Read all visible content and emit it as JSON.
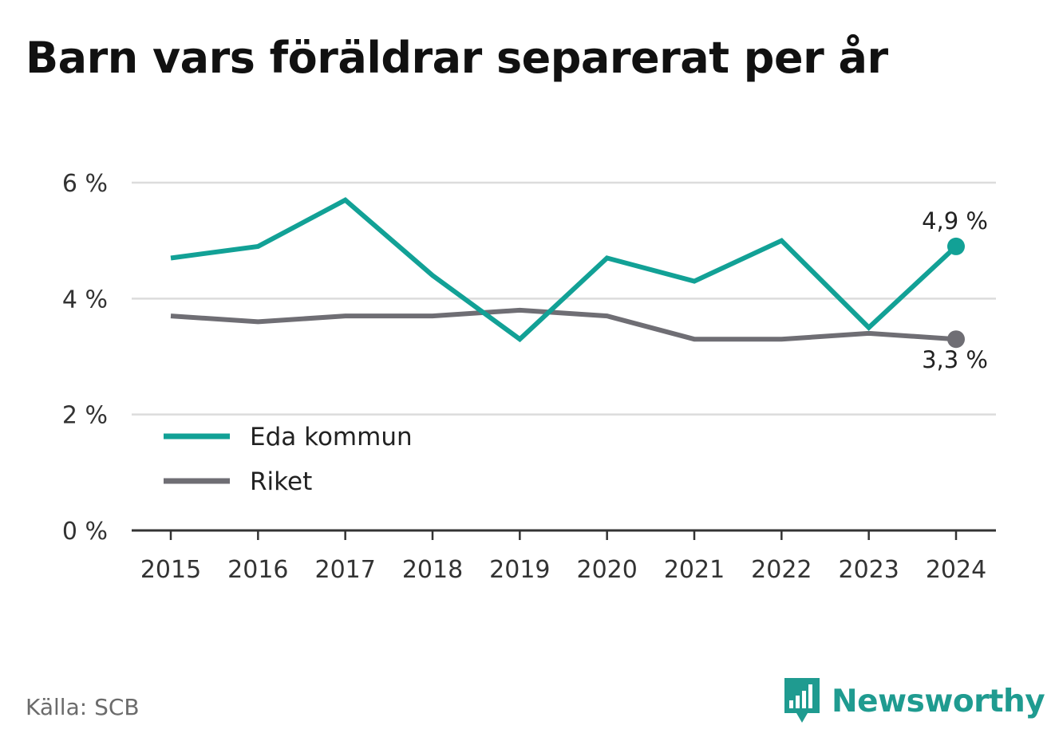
{
  "chart_data": {
    "type": "line",
    "title": "Barn vars föräldrar separerat per år",
    "x": [
      "2015",
      "2016",
      "2017",
      "2018",
      "2019",
      "2020",
      "2021",
      "2022",
      "2023",
      "2024"
    ],
    "series": [
      {
        "name": "Eda kommun",
        "color": "#12a196",
        "values": [
          4.7,
          4.9,
          5.7,
          4.4,
          3.3,
          4.7,
          4.3,
          5.0,
          3.5,
          4.9
        ]
      },
      {
        "name": "Riket",
        "color": "#6f6e74",
        "values": [
          3.7,
          3.6,
          3.7,
          3.7,
          3.8,
          3.7,
          3.3,
          3.3,
          3.4,
          3.3
        ]
      }
    ],
    "yticks": [
      "0 %",
      "2 %",
      "4 %",
      "6 %"
    ],
    "ytick_values": [
      0,
      2,
      4,
      6
    ],
    "ylim": [
      0,
      6
    ],
    "end_labels": [
      "4,9 %",
      "3,3 %"
    ],
    "grid": true,
    "legend_position": "bottom-left",
    "xlabel": "",
    "ylabel": ""
  },
  "source": "Källa: SCB",
  "brand": {
    "name": "Newsworthy",
    "color": "#1f9b90",
    "icon": "newsworthy-logo-icon"
  }
}
